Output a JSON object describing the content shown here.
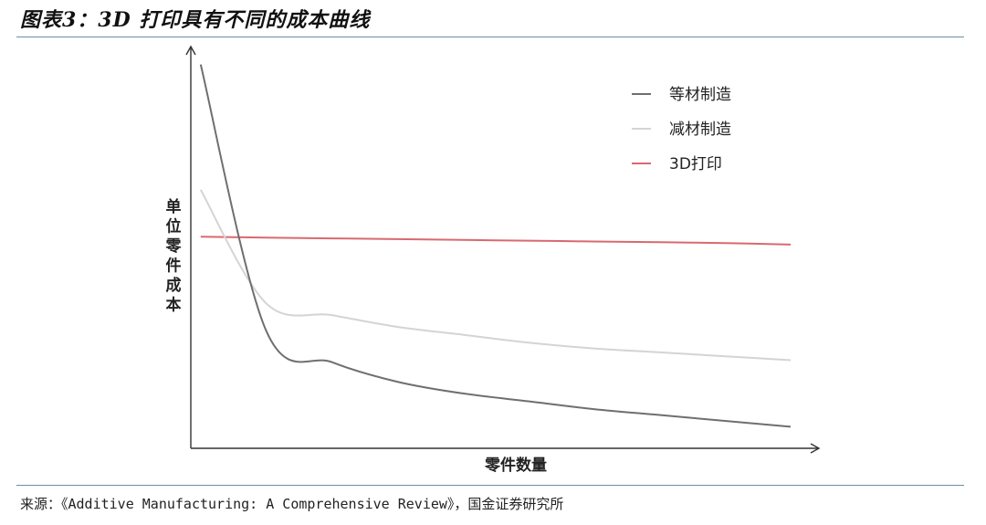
{
  "figure": {
    "title": "图表3：3D 打印具有不同的成本曲线",
    "source": "来源：《Additive Manufacturing: A Comprehensive Review》，国金证券研究所"
  },
  "chart_data": {
    "type": "line",
    "xlabel": "零件数量",
    "ylabel": "单位零件成本",
    "ylabel_chars": [
      "单",
      "位",
      "零",
      "件",
      "成",
      "本"
    ],
    "x_ticks": [],
    "y_ticks": [],
    "x": [
      1,
      2,
      3,
      4,
      5,
      6,
      7,
      8,
      9,
      10
    ],
    "xlim": [
      0.85,
      10
    ],
    "ylim": [
      0,
      1
    ],
    "grid": false,
    "legend_position": "top-right",
    "series": [
      {
        "name": "等材制造",
        "color": "#6f6f6f",
        "values": [
          0.98,
          0.3,
          0.22,
          0.17,
          0.14,
          0.12,
          0.1,
          0.085,
          0.07,
          0.055
        ]
      },
      {
        "name": "减材制造",
        "color": "#d4d4d4",
        "values": [
          0.66,
          0.37,
          0.34,
          0.31,
          0.29,
          0.27,
          0.255,
          0.245,
          0.235,
          0.225
        ]
      },
      {
        "name": "3D打印",
        "color": "#d9696f",
        "values": [
          0.54,
          0.538,
          0.536,
          0.534,
          0.532,
          0.53,
          0.528,
          0.526,
          0.524,
          0.52
        ]
      }
    ]
  }
}
